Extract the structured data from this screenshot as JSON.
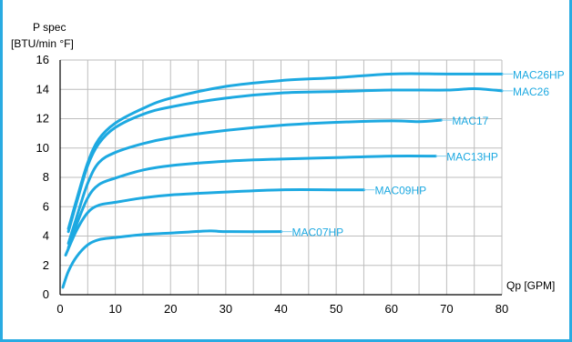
{
  "heading_fragment": "p spec ... gpm",
  "chart_data": {
    "type": "line",
    "title": "",
    "ylabel_line1": "P spec",
    "ylabel_line2": "[BTU/min °F]",
    "xlabel": "Qp [GPM]",
    "xlim": [
      0,
      80
    ],
    "ylim": [
      0,
      16
    ],
    "xticks": [
      0,
      10,
      20,
      30,
      40,
      50,
      60,
      70,
      80
    ],
    "yticks": [
      0,
      2,
      4,
      6,
      8,
      10,
      12,
      14,
      16
    ],
    "grid": true,
    "line_color": "#1da9e1",
    "series": [
      {
        "name": "MAC26HP",
        "points": [
          [
            1.5,
            4.5
          ],
          [
            3,
            6.5
          ],
          [
            5,
            9
          ],
          [
            7,
            10.6
          ],
          [
            10,
            11.7
          ],
          [
            15,
            12.7
          ],
          [
            20,
            13.4
          ],
          [
            30,
            14.2
          ],
          [
            40,
            14.6
          ],
          [
            50,
            14.8
          ],
          [
            60,
            15.05
          ],
          [
            70,
            15.05
          ],
          [
            80,
            15.05
          ]
        ]
      },
      {
        "name": "MAC26",
        "points": [
          [
            1.5,
            4.3
          ],
          [
            3,
            6.3
          ],
          [
            5,
            8.8
          ],
          [
            7,
            10.3
          ],
          [
            10,
            11.4
          ],
          [
            15,
            12.3
          ],
          [
            20,
            12.8
          ],
          [
            30,
            13.4
          ],
          [
            40,
            13.75
          ],
          [
            50,
            13.85
          ],
          [
            60,
            13.95
          ],
          [
            70,
            13.95
          ],
          [
            75,
            14.05
          ],
          [
            80,
            13.9
          ]
        ]
      },
      {
        "name": "MAC17",
        "points": [
          [
            1.5,
            3.5
          ],
          [
            3,
            5.3
          ],
          [
            5,
            7.6
          ],
          [
            7,
            9
          ],
          [
            10,
            9.7
          ],
          [
            15,
            10.3
          ],
          [
            20,
            10.7
          ],
          [
            30,
            11.2
          ],
          [
            40,
            11.55
          ],
          [
            50,
            11.75
          ],
          [
            60,
            11.85
          ],
          [
            65,
            11.8
          ],
          [
            69,
            11.9
          ]
        ]
      },
      {
        "name": "MAC13HP",
        "points": [
          [
            1.5,
            3.2
          ],
          [
            3,
            4.8
          ],
          [
            5,
            6.6
          ],
          [
            7,
            7.5
          ],
          [
            10,
            7.95
          ],
          [
            15,
            8.5
          ],
          [
            20,
            8.8
          ],
          [
            30,
            9.1
          ],
          [
            40,
            9.25
          ],
          [
            50,
            9.35
          ],
          [
            60,
            9.45
          ],
          [
            68,
            9.45
          ]
        ]
      },
      {
        "name": "MAC09HP",
        "points": [
          [
            1,
            2.7
          ],
          [
            3,
            4.4
          ],
          [
            5,
            5.6
          ],
          [
            7,
            6.1
          ],
          [
            10,
            6.3
          ],
          [
            15,
            6.6
          ],
          [
            20,
            6.8
          ],
          [
            30,
            7
          ],
          [
            40,
            7.15
          ],
          [
            50,
            7.15
          ],
          [
            55,
            7.15
          ]
        ]
      },
      {
        "name": "MAC07HP",
        "points": [
          [
            0.5,
            0.5
          ],
          [
            1.5,
            1.6
          ],
          [
            3,
            2.6
          ],
          [
            5,
            3.4
          ],
          [
            7,
            3.75
          ],
          [
            10,
            3.9
          ],
          [
            15,
            4.1
          ],
          [
            20,
            4.2
          ],
          [
            27,
            4.35
          ],
          [
            30,
            4.3
          ],
          [
            40,
            4.3
          ]
        ]
      }
    ]
  }
}
